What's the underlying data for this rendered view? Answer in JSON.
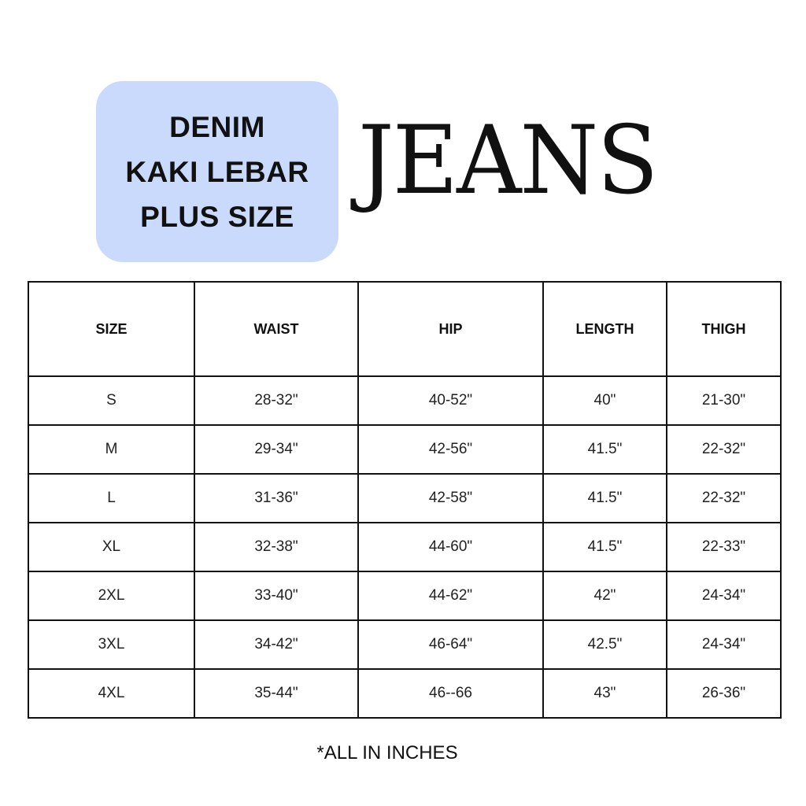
{
  "badge": {
    "lines": [
      "DENIM",
      "KAKI LEBAR",
      "PLUS SIZE"
    ],
    "color": "#c9dafc"
  },
  "title": "JEANS",
  "table": {
    "headers": [
      "SIZE",
      "WAIST",
      "HIP",
      "LENGTH",
      "THIGH"
    ],
    "rows": [
      [
        "S",
        "28-32\"",
        "40-52\"",
        "40\"",
        "21-30\""
      ],
      [
        "M",
        "29-34\"",
        "42-56\"",
        "41.5\"",
        "22-32\""
      ],
      [
        "L",
        "31-36\"",
        "42-58\"",
        "41.5\"",
        "22-32\""
      ],
      [
        "XL",
        "32-38\"",
        "44-60\"",
        "41.5\"",
        "22-33\""
      ],
      [
        "2XL",
        "33-40\"",
        "44-62\"",
        "42\"",
        "24-34\""
      ],
      [
        "3XL",
        "34-42\"",
        "46-64\"",
        "42.5\"",
        "24-34\""
      ],
      [
        "4XL",
        "35-44\"",
        "46--66",
        "43\"",
        "26-36\""
      ]
    ]
  },
  "note": "*ALL IN INCHES"
}
